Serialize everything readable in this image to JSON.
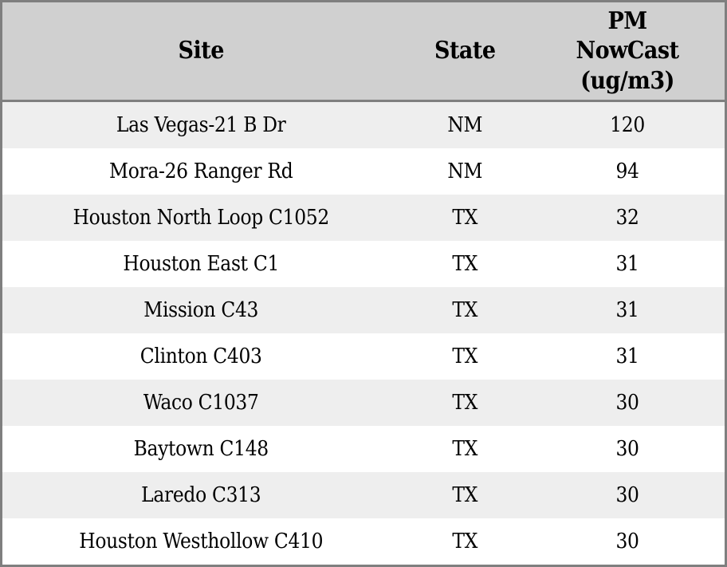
{
  "chart_data": {
    "type": "table",
    "columns": [
      "Site",
      "State",
      "PM NowCast (ug/m3)"
    ],
    "rows": [
      {
        "site": "Las Vegas-21 B Dr",
        "state": "NM",
        "pm_nowcast": 120
      },
      {
        "site": "Mora-26 Ranger Rd",
        "state": "NM",
        "pm_nowcast": 94
      },
      {
        "site": "Houston North Loop C1052",
        "state": "TX",
        "pm_nowcast": 32
      },
      {
        "site": "Houston East C1",
        "state": "TX",
        "pm_nowcast": 31
      },
      {
        "site": "Mission C43",
        "state": "TX",
        "pm_nowcast": 31
      },
      {
        "site": "Clinton C403",
        "state": "TX",
        "pm_nowcast": 31
      },
      {
        "site": "Waco C1037",
        "state": "TX",
        "pm_nowcast": 30
      },
      {
        "site": "Baytown C148",
        "state": "TX",
        "pm_nowcast": 30
      },
      {
        "site": "Laredo C313",
        "state": "TX",
        "pm_nowcast": 30
      },
      {
        "site": "Houston Westhollow C410",
        "state": "TX",
        "pm_nowcast": 30
      }
    ]
  },
  "header": {
    "site_label": "Site",
    "state_label": "State",
    "pm_label": "PM\nNowCast\n(ug/m3)"
  },
  "colors": {
    "header_bg": "#d0d0d0",
    "row_alt_bg": "#eeeeee",
    "row_bg": "#ffffff",
    "border": "#7f7f7f",
    "text": "#000000"
  }
}
